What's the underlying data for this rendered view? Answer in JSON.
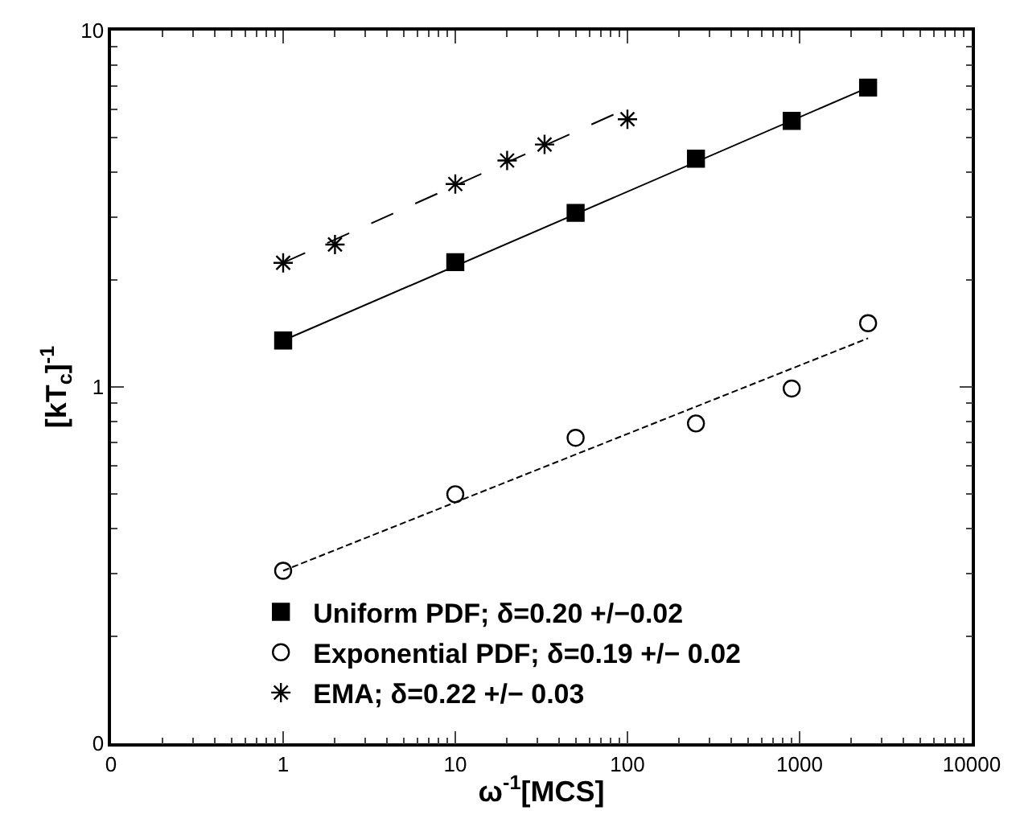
{
  "chart_data": {
    "type": "scatter",
    "xlabel": "ω$^{-1}$[MCS]",
    "ylabel": "[kT$_{c}$]$^{-1}$",
    "log": "xy",
    "legend": "bottom left",
    "xlim": [
      0.1,
      10000
    ],
    "xticks": [
      {
        "value": 0.1,
        "label": "0"
      },
      1,
      10,
      100,
      1000,
      10000
    ],
    "ylim": [
      0.1,
      10
    ],
    "yticks": [
      {
        "value": 0.1,
        "label": "0"
      },
      1,
      10
    ],
    "series": [
      {
        "name": "Uniform PDF; δ=0.20 +/−0.02",
        "marker": "square",
        "color": "#000000",
        "x": [
          1,
          10,
          50,
          250,
          900,
          2500
        ],
        "values": [
          1.35,
          2.24,
          3.08,
          4.37,
          5.58,
          6.92
        ]
      },
      {
        "name": "Exponential PDF; δ=0.19 +/− 0.02",
        "marker": "circle",
        "color": "#000000",
        "x": [
          1,
          10,
          50,
          250,
          900,
          2500
        ],
        "values": [
          0.305,
          0.5,
          0.72,
          0.79,
          0.99,
          1.51
        ]
      },
      {
        "name": "EMA; δ=0.22 +/− 0.03",
        "marker": "cross",
        "color": "#000000",
        "x": [
          1,
          2,
          10,
          20,
          33,
          100
        ],
        "values": [
          2.23,
          2.51,
          3.71,
          4.32,
          4.79,
          5.64
        ]
      },
      {
        "type": "line",
        "line_style": "solid",
        "color": "#000000",
        "x": [
          1,
          2500
        ],
        "values": [
          1.35,
          6.92
        ]
      },
      {
        "type": "line",
        "line_style": "dotted",
        "color": "#000000",
        "x": [
          1,
          2500
        ],
        "values": [
          0.305,
          1.37
        ]
      },
      {
        "type": "line",
        "line_style": "dashed",
        "color": "#000000",
        "x": [
          1,
          100
        ],
        "values": [
          2.23,
          6.05
        ]
      }
    ]
  }
}
